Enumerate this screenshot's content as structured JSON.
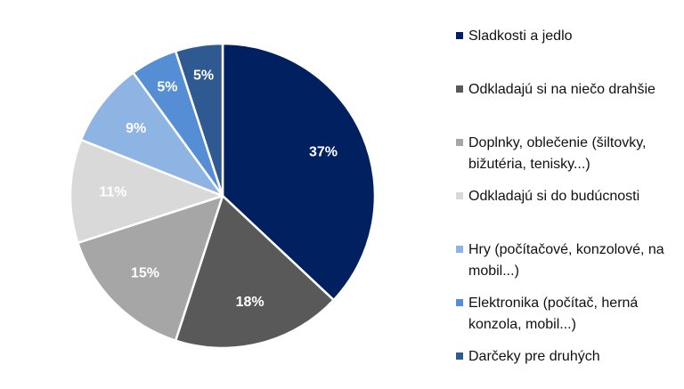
{
  "chart_data": {
    "type": "pie",
    "categories": [
      "Sladkosti a jedlo",
      "Odkladajú si na niečo drahšie",
      "Doplnky, oblečenie (šiltovky, bižutéria, tenisky...)",
      "Odkladajú si do budúcnosti",
      "Hry (počítačové, konzolové, na mobil...)",
      "Elektronika (počítač, herná konzola, mobil...)",
      "Darčeky pre druhých"
    ],
    "values": [
      37,
      18,
      15,
      11,
      9,
      5,
      5
    ],
    "value_labels": [
      "37%",
      "18%",
      "15%",
      "11%",
      "9%",
      "5%",
      "5%"
    ],
    "colors": [
      "#002060",
      "#595959",
      "#a6a6a6",
      "#d9d9d9",
      "#8eb4e3",
      "#558ed5",
      "#2e5a91"
    ],
    "label_colors": [
      "#ffffff",
      "#ffffff",
      "#ffffff",
      "#ffffff",
      "#ffffff",
      "#ffffff",
      "#ffffff"
    ],
    "legend_position": "right",
    "title": ""
  }
}
